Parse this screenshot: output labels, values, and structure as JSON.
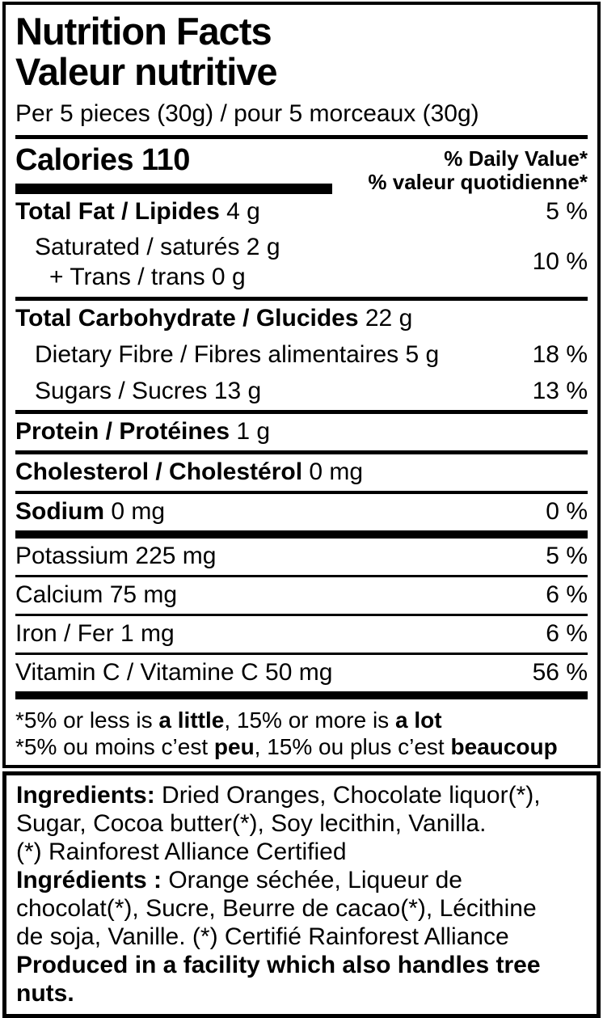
{
  "colors": {
    "text": "#000000",
    "background": "#ffffff"
  },
  "label": {
    "title_en": "Nutrition Facts",
    "title_fr": "Valeur nutritive",
    "serving": "Per 5 pieces (30g) / pour 5 morceaux (30g)",
    "calories": {
      "label": "Calories 110",
      "dv_header_en": "% Daily Value*",
      "dv_header_fr": "% valeur quotidienne*"
    },
    "rows": {
      "total_fat": {
        "bold": "Total Fat / Lipides",
        "rest": " 4 g",
        "dv": "5 %"
      },
      "saturated": {
        "line1": "Saturated / saturés 2 g",
        "line2": "+ Trans / trans 0 g",
        "dv": "10 %"
      },
      "total_carb": {
        "bold": "Total Carbohydrate / Glucides",
        "rest": " 22 g"
      },
      "fibre": {
        "label": "Dietary Fibre / Fibres alimentaires 5 g",
        "dv": "18 %"
      },
      "sugars": {
        "label": "Sugars / Sucres 13 g",
        "dv": "13 %"
      },
      "protein": {
        "bold": "Protein / Protéines",
        "rest": " 1 g"
      },
      "cholesterol": {
        "bold": "Cholesterol / Cholestérol",
        "rest": " 0 mg"
      },
      "sodium": {
        "bold": "Sodium",
        "rest": " 0 mg",
        "dv": "0 %"
      },
      "potassium": {
        "label": "Potassium 225 mg",
        "dv": "5 %"
      },
      "calcium": {
        "label": "Calcium 75 mg",
        "dv": "6 %"
      },
      "iron": {
        "label": "Iron / Fer 1 mg",
        "dv": "6 %"
      },
      "vitamin_c": {
        "label": "Vitamin C / Vitamine C 50 mg",
        "dv": "56 %"
      }
    },
    "footnotes": {
      "en": {
        "p1": "*5% or less is ",
        "b1": "a little",
        "p2": ", 15% or more is ",
        "b2": "a lot"
      },
      "fr": {
        "p1": "*5% ou moins c’est ",
        "b1": "peu",
        "p2": ", 15% ou plus c’est ",
        "b2": "beaucoup"
      }
    }
  },
  "ingredients": {
    "en_bold": "Ingredients:",
    "en_line1_rest": " Dried Oranges, Chocolate liquor(*),",
    "en_line2": "Sugar, Cocoa butter(*), Soy lecithin, Vanilla.",
    "en_line3": "(*) Rainforest Alliance Certified",
    "fr_bold": "Ingrédients :",
    "fr_line1_rest": " Orange séchée, Liqueur de",
    "fr_line2": "chocolat(*), Sucre, Beurre de cacao(*), Lécithine",
    "fr_line3": "de soja, Vanille. (*) Certifié Rainforest Alliance",
    "allergen": "Produced in a facility which also handles tree nuts."
  }
}
